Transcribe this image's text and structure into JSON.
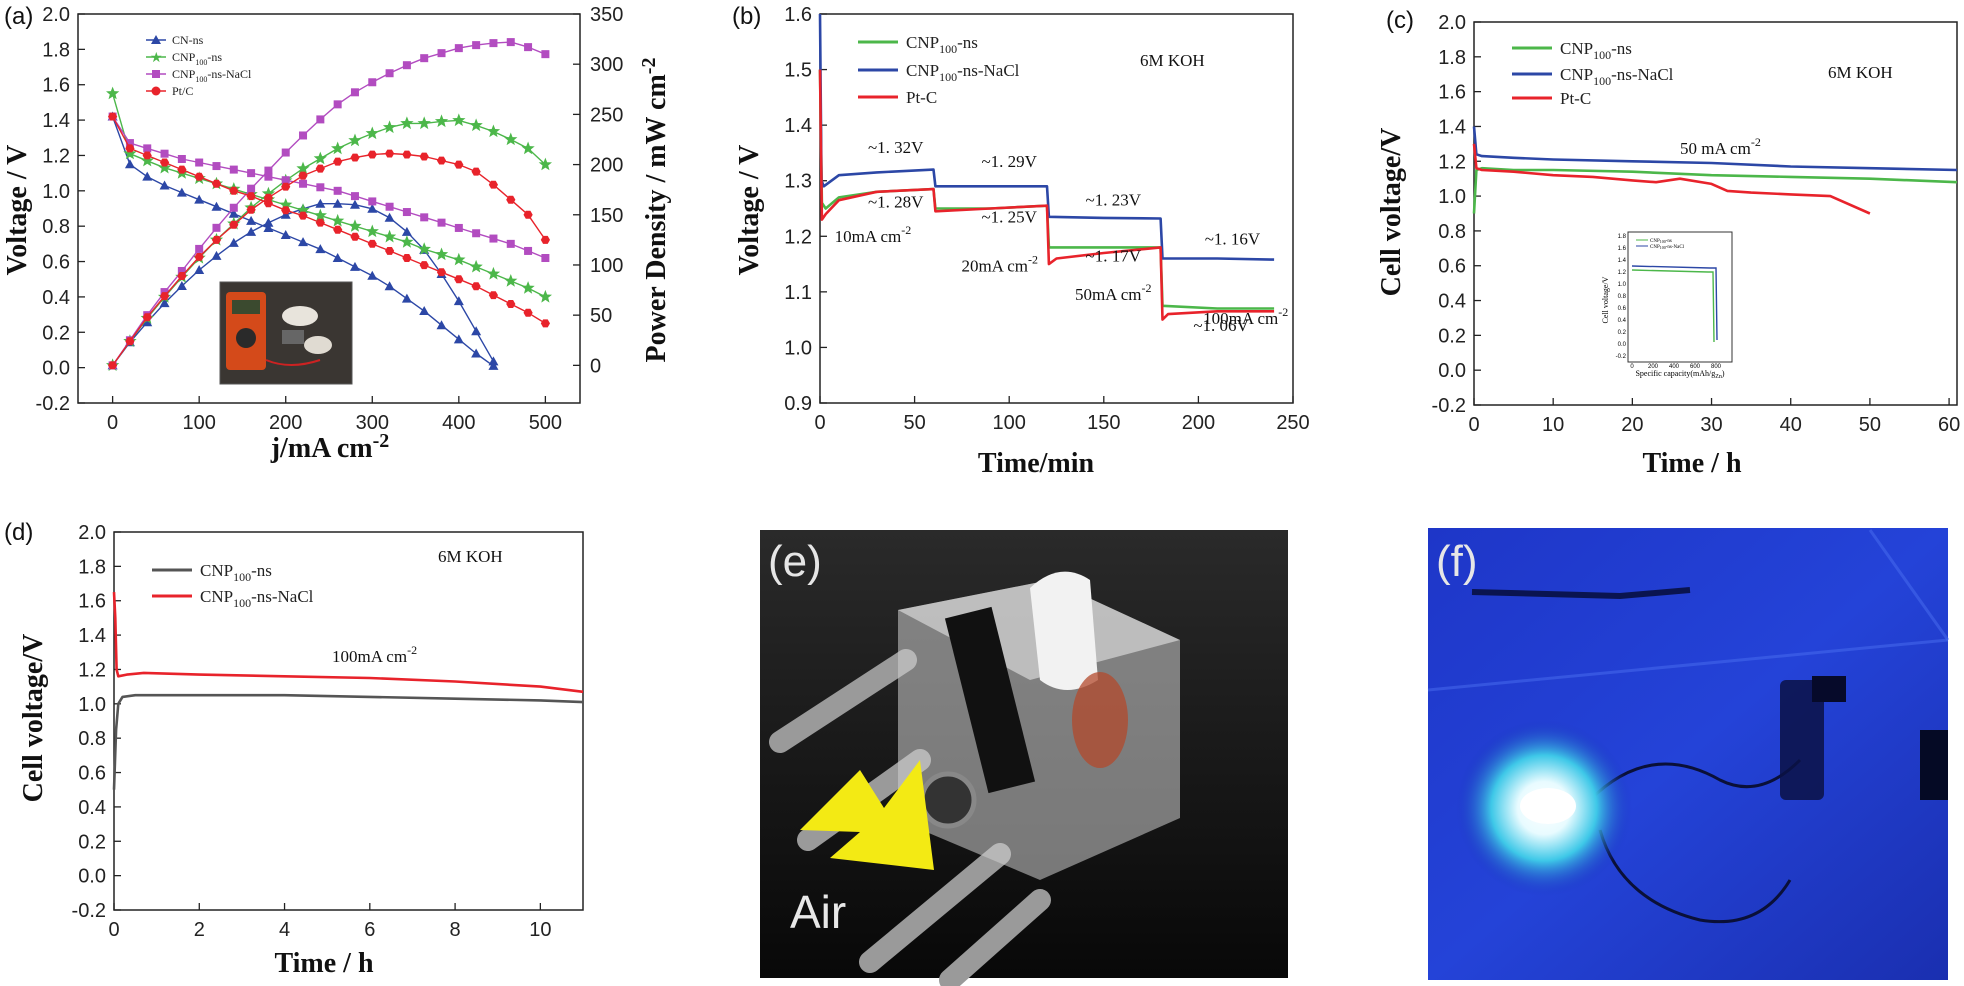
{
  "colors": {
    "blue": "#2c47a6",
    "green": "#4cb74a",
    "magenta": "#b24cc0",
    "red": "#e8232b",
    "gray": "#555555",
    "dark": "#1f1f1f"
  },
  "chart_data": [
    {
      "id": "a",
      "panel_label": "(a)",
      "type": "line",
      "xlabel": "j/mA cm",
      "xlabel_sup": "-2",
      "ylabel": "Voltage / V",
      "y2label": "Power Density / mW cm",
      "y2label_sup": "-2",
      "xlim": [
        -40,
        540
      ],
      "ylim": [
        -0.2,
        2.0
      ],
      "y2lim": [
        -37.5,
        350
      ],
      "xticks": [
        "0",
        "100",
        "200",
        "300",
        "400",
        "500"
      ],
      "yticks": [
        "-0.2",
        "0.0",
        "0.2",
        "0.4",
        "0.6",
        "0.8",
        "1.0",
        "1.2",
        "1.4",
        "1.6",
        "1.8",
        "2.0"
      ],
      "y2ticks": [
        "0",
        "50",
        "100",
        "150",
        "200",
        "250",
        "300",
        "350"
      ],
      "legend": [
        "CN-ns",
        "CNP",
        "100",
        "-ns",
        "CNP",
        "100",
        "-ns-NaCl",
        "Pt/C"
      ],
      "series": [
        {
          "name": "CN-ns",
          "color": "blue",
          "marker": "triangle",
          "voltage": {
            "x": [
              0,
              20,
              40,
              60,
              80,
              100,
              120,
              140,
              160,
              180,
              200,
              220,
              240,
              260,
              280,
              300,
              320,
              340,
              360,
              380,
              400,
              420,
              440
            ],
            "y": [
              1.42,
              1.15,
              1.08,
              1.03,
              0.99,
              0.95,
              0.91,
              0.87,
              0.83,
              0.79,
              0.75,
              0.71,
              0.67,
              0.62,
              0.57,
              0.52,
              0.46,
              0.39,
              0.32,
              0.24,
              0.16,
              0.08,
              0.01
            ]
          },
          "power": {
            "x": [
              0,
              20,
              40,
              60,
              80,
              100,
              120,
              140,
              160,
              180,
              200,
              220,
              240,
              260,
              280,
              300,
              320,
              340,
              360,
              380,
              400,
              420,
              440
            ],
            "y": [
              0,
              23,
              43,
              62,
              79,
              95,
              109,
              122,
              133,
              142,
              150,
              156,
              161,
              161,
              160,
              156,
              147,
              133,
              115,
              91,
              64,
              34,
              4
            ]
          }
        },
        {
          "name": "CNP100-ns",
          "color": "green",
          "marker": "star",
          "voltage": {
            "x": [
              0,
              20,
              40,
              60,
              80,
              100,
              120,
              140,
              160,
              180,
              200,
              220,
              240,
              260,
              280,
              300,
              320,
              340,
              360,
              380,
              400,
              420,
              440,
              460,
              480,
              500
            ],
            "y": [
              1.55,
              1.21,
              1.17,
              1.13,
              1.1,
              1.07,
              1.04,
              1.01,
              0.98,
              0.95,
              0.92,
              0.89,
              0.86,
              0.83,
              0.8,
              0.77,
              0.74,
              0.71,
              0.67,
              0.64,
              0.61,
              0.57,
              0.53,
              0.49,
              0.45,
              0.4
            ]
          },
          "power": {
            "x": [
              0,
              20,
              40,
              60,
              80,
              100,
              120,
              140,
              160,
              180,
              200,
              220,
              240,
              260,
              280,
              300,
              320,
              340,
              360,
              380,
              400,
              420,
              440,
              460,
              480,
              500
            ],
            "y": [
              0,
              24,
              47,
              68,
              88,
              107,
              125,
              141,
              157,
              171,
              184,
              196,
              206,
              216,
              224,
              231,
              237,
              241,
              241,
              243,
              244,
              239,
              233,
              225,
              216,
              200
            ]
          }
        },
        {
          "name": "CNP100-ns-NaCl",
          "color": "magenta",
          "marker": "square",
          "voltage": {
            "x": [
              0,
              20,
              40,
              60,
              80,
              100,
              120,
              140,
              160,
              180,
              200,
              220,
              240,
              260,
              280,
              300,
              320,
              340,
              360,
              380,
              400,
              420,
              440,
              460,
              480,
              500
            ],
            "y": [
              1.42,
              1.27,
              1.24,
              1.21,
              1.18,
              1.16,
              1.14,
              1.12,
              1.1,
              1.08,
              1.06,
              1.04,
              1.02,
              1.0,
              0.97,
              0.94,
              0.91,
              0.88,
              0.85,
              0.82,
              0.79,
              0.76,
              0.73,
              0.7,
              0.66,
              0.62
            ]
          },
          "power": {
            "x": [
              0,
              20,
              40,
              60,
              80,
              100,
              120,
              140,
              160,
              180,
              200,
              220,
              240,
              260,
              280,
              300,
              320,
              340,
              360,
              380,
              400,
              420,
              440,
              460,
              480,
              500
            ],
            "y": [
              0,
              25,
              50,
              73,
              94,
              116,
              137,
              157,
              176,
              194,
              212,
              229,
              245,
              260,
              272,
              282,
              291,
              299,
              306,
              311,
              316,
              319,
              321,
              322,
              317,
              310
            ]
          }
        },
        {
          "name": "Pt/C",
          "color": "red",
          "marker": "hexagon",
          "voltage": {
            "x": [
              0,
              20,
              40,
              60,
              80,
              100,
              120,
              140,
              160,
              180,
              200,
              220,
              240,
              260,
              280,
              300,
              320,
              340,
              360,
              380,
              400,
              420,
              440,
              460,
              480,
              500
            ],
            "y": [
              1.42,
              1.24,
              1.2,
              1.16,
              1.12,
              1.08,
              1.04,
              1.0,
              0.97,
              0.93,
              0.89,
              0.86,
              0.82,
              0.78,
              0.74,
              0.7,
              0.66,
              0.62,
              0.58,
              0.54,
              0.5,
              0.46,
              0.41,
              0.36,
              0.31,
              0.25
            ]
          },
          "power": {
            "x": [
              0,
              20,
              40,
              60,
              80,
              100,
              120,
              140,
              160,
              180,
              200,
              220,
              240,
              260,
              280,
              300,
              320,
              340,
              360,
              380,
              400,
              420,
              440,
              460,
              480,
              500
            ],
            "y": [
              0,
              24,
              48,
              69,
              89,
              108,
              125,
              140,
              155,
              167,
              178,
              189,
              196,
              203,
              207,
              210,
              211,
              210,
              208,
              204,
              200,
              193,
              180,
              165,
              150,
              125
            ]
          }
        }
      ]
    },
    {
      "id": "b",
      "panel_label": "(b)",
      "type": "line",
      "xlabel": "Time/min",
      "ylabel": "Voltage / V",
      "xlim": [
        0,
        250
      ],
      "ylim": [
        0.9,
        1.6
      ],
      "xticks": [
        "0",
        "50",
        "100",
        "150",
        "200",
        "250"
      ],
      "yticks": [
        "0.9",
        "1.0",
        "1.1",
        "1.2",
        "1.3",
        "1.4",
        "1.5",
        "1.6"
      ],
      "legend": [
        "CNP",
        "100",
        "-ns",
        "CNP",
        "100",
        "-ns-NaCl",
        "Pt-C"
      ],
      "annotation_text": "6M KOH",
      "annotations": [
        {
          "text": "~1. 32V",
          "x": 40,
          "y": 1.35
        },
        {
          "text": "~1. 28V",
          "x": 40,
          "y": 1.252
        },
        {
          "text": "~1. 29V",
          "x": 100,
          "y": 1.325
        },
        {
          "text": "~1. 25V",
          "x": 100,
          "y": 1.225
        },
        {
          "text": "~1. 23V",
          "x": 155,
          "y": 1.255
        },
        {
          "text": "~1. 17V",
          "x": 155,
          "y": 1.155
        },
        {
          "text": "~1. 16V",
          "x": 218,
          "y": 1.185
        },
        {
          "text": "~1. 06V",
          "x": 212,
          "y": 1.03
        }
      ],
      "current_labels": [
        {
          "text": "10mA cm",
          "sup": "-2",
          "x": 28,
          "y": 1.19
        },
        {
          "text": "20mA cm",
          "sup": "-2",
          "x": 95,
          "y": 1.137
        },
        {
          "text": "50mA cm",
          "sup": "-2",
          "x": 155,
          "y": 1.085
        },
        {
          "text": "100mA cm",
          "sup": "-2",
          "x": 225,
          "y": 1.042
        }
      ],
      "series": [
        {
          "name": "CNP100-ns",
          "color": "green",
          "x": [
            0,
            1,
            3,
            10,
            30,
            60,
            61,
            90,
            120,
            121,
            150,
            180,
            181,
            210,
            240
          ],
          "y": [
            1.5,
            1.26,
            1.25,
            1.27,
            1.28,
            1.285,
            1.25,
            1.25,
            1.255,
            1.18,
            1.18,
            1.18,
            1.075,
            1.07,
            1.07
          ]
        },
        {
          "name": "CNP100-ns-NaCl",
          "color": "blue",
          "x": [
            0,
            0.8,
            2,
            10,
            30,
            60,
            61,
            90,
            120,
            121,
            150,
            180,
            181,
            210,
            240
          ],
          "y": [
            1.6,
            1.3,
            1.29,
            1.31,
            1.315,
            1.32,
            1.29,
            1.29,
            1.29,
            1.235,
            1.233,
            1.232,
            1.16,
            1.16,
            1.158
          ]
        },
        {
          "name": "Pt-C",
          "color": "red",
          "x": [
            0,
            1,
            3,
            10,
            30,
            60,
            61,
            90,
            120,
            121,
            125,
            150,
            180,
            181,
            184,
            210,
            240
          ],
          "y": [
            1.5,
            1.23,
            1.24,
            1.265,
            1.28,
            1.285,
            1.245,
            1.25,
            1.255,
            1.15,
            1.16,
            1.17,
            1.18,
            1.05,
            1.06,
            1.065,
            1.065
          ]
        }
      ]
    },
    {
      "id": "c",
      "panel_label": "(c)",
      "type": "line",
      "xlabel": "Time / h",
      "ylabel": "Cell voltage/V",
      "xlim": [
        0,
        61
      ],
      "ylim": [
        -0.2,
        2.0
      ],
      "xticks": [
        "0",
        "10",
        "20",
        "30",
        "40",
        "50",
        "60"
      ],
      "yticks": [
        "-0.2",
        "0.0",
        "0.2",
        "0.4",
        "0.6",
        "0.8",
        "1.0",
        "1.2",
        "1.4",
        "1.6",
        "1.8",
        "2.0"
      ],
      "legend": [
        "CNP",
        "100",
        "-ns",
        "CNP",
        "100",
        "-ns-NaCl",
        "Pt-C"
      ],
      "annotation_text": "6M KOH",
      "current_label": "50 mA cm",
      "current_label_sup": "-2",
      "inset": {
        "ylabel": "Cell voltage/V",
        "xlabel": "Specific capacity(mAh/g",
        "xlabel_sub": "Zn",
        "xlabel_end": ")",
        "xticks": [
          "0",
          "200",
          "400",
          "600",
          "800"
        ],
        "yticks": [
          "1.8",
          "1.6",
          "1.4",
          "1.2",
          "1.0",
          "0.8",
          "0.6",
          "0.4",
          "0.2",
          "0.0",
          "-0.2"
        ],
        "legend": [
          "CNP",
          "100",
          "-ns",
          "CNP",
          "100",
          "-ns-NaCl"
        ]
      },
      "series": [
        {
          "name": "CNP100-ns",
          "color": "green",
          "x": [
            0,
            0.3,
            1,
            5,
            10,
            20,
            30,
            40,
            50,
            61
          ],
          "y": [
            0.9,
            1.15,
            1.16,
            1.15,
            1.15,
            1.14,
            1.12,
            1.11,
            1.1,
            1.08
          ]
        },
        {
          "name": "CNP100-ns-NaCl",
          "color": "blue",
          "x": [
            0,
            0.3,
            1,
            5,
            10,
            20,
            30,
            40,
            50,
            61
          ],
          "y": [
            1.4,
            1.24,
            1.23,
            1.22,
            1.21,
            1.2,
            1.19,
            1.17,
            1.16,
            1.15
          ]
        },
        {
          "name": "Pt-C",
          "color": "red",
          "x": [
            0,
            0.3,
            1,
            5,
            10,
            15,
            20,
            23,
            26,
            30,
            32,
            35,
            40,
            45,
            50
          ],
          "y": [
            1.3,
            1.16,
            1.15,
            1.14,
            1.12,
            1.11,
            1.09,
            1.08,
            1.1,
            1.07,
            1.03,
            1.02,
            1.01,
            1.0,
            0.9
          ]
        }
      ]
    },
    {
      "id": "d",
      "panel_label": "(d)",
      "type": "line",
      "xlabel": "Time / h",
      "ylabel": "Cell voltage/V",
      "xlim": [
        0,
        11
      ],
      "ylim": [
        -0.2,
        2.0
      ],
      "xticks": [
        "0",
        "2",
        "4",
        "6",
        "8",
        "10"
      ],
      "yticks": [
        "-0.2",
        "0.0",
        "0.2",
        "0.4",
        "0.6",
        "0.8",
        "1.0",
        "1.2",
        "1.4",
        "1.6",
        "1.8",
        "2.0"
      ],
      "legend": [
        "CNP",
        "100",
        "-ns",
        "CNP",
        "100",
        "-ns-NaCl"
      ],
      "annotation_text": "6M KOH",
      "current_label": "100mA cm",
      "current_label_sup": "-2",
      "series": [
        {
          "name": "CNP100-ns",
          "color": "gray",
          "x": [
            0,
            0.05,
            0.1,
            0.2,
            0.5,
            1,
            2,
            4,
            6,
            8,
            10,
            11
          ],
          "y": [
            0.5,
            0.85,
            1.0,
            1.04,
            1.05,
            1.05,
            1.05,
            1.05,
            1.04,
            1.03,
            1.02,
            1.01
          ]
        },
        {
          "name": "CNP100-ns-NaCl",
          "color": "red",
          "x": [
            0,
            0.03,
            0.06,
            0.1,
            0.3,
            0.7,
            2,
            4,
            6,
            8,
            10,
            11
          ],
          "y": [
            1.65,
            1.5,
            1.2,
            1.16,
            1.17,
            1.18,
            1.17,
            1.16,
            1.15,
            1.13,
            1.1,
            1.07
          ]
        }
      ]
    }
  ],
  "photos": {
    "e": {
      "label": "(e)",
      "air_text": "Air",
      "icon": "zinc-air-battery-photo"
    },
    "f": {
      "label": "(f)",
      "icon": "glowing-led-photo"
    }
  }
}
